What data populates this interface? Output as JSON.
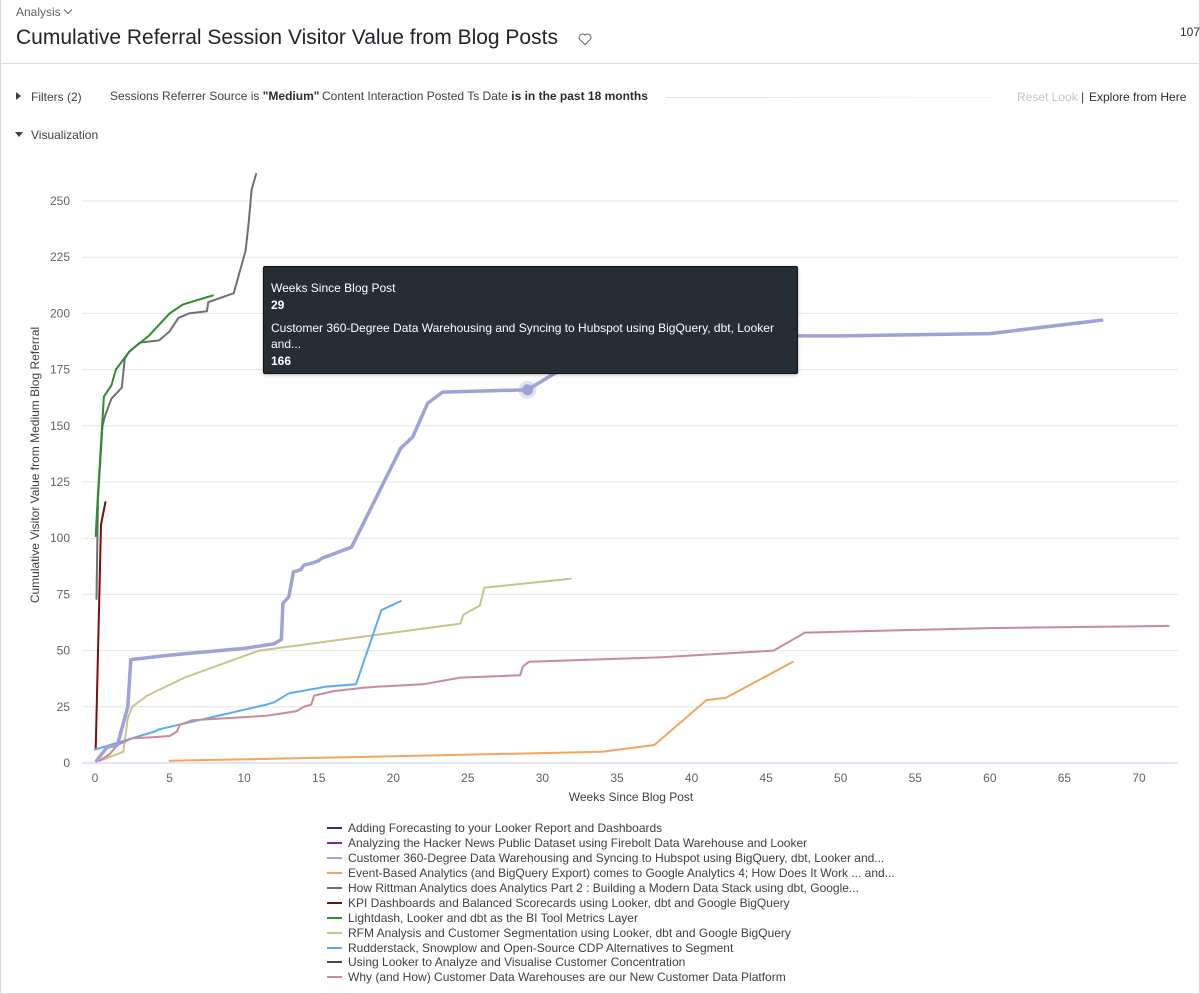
{
  "header": {
    "breadcrumb": "Analysis",
    "title": "Cumulative Referral Session Visitor Value from Blog Posts",
    "favorite_icon": "heart-outline-icon",
    "row_count": "107"
  },
  "filters": {
    "label": "Filters (2)",
    "items": [
      {
        "field": "Sessions Referrer Source",
        "op": "is",
        "value": "\"Medium\""
      },
      {
        "field": "Content Interaction Posted Ts Date",
        "op": "is in the past 18 months",
        "value": ""
      }
    ],
    "filter1_prefix": "Sessions Referrer Source is ",
    "filter1_value": "\"Medium\"",
    "filter2_prefix": "Content Interaction Posted Ts Date ",
    "filter2_value": "is in the past 18 months"
  },
  "actions": {
    "reset_label": "Reset Look",
    "separator": "|",
    "explore_label": "Explore from Here"
  },
  "visualization": {
    "label": "Visualization"
  },
  "tooltip": {
    "x_label": "Weeks Since Blog Post",
    "x_value": "29",
    "series_label": "Customer 360-Degree Data Warehousing and Syncing to Hubspot using BigQuery, dbt, Looker and...",
    "series_value": "166"
  },
  "chart_data": {
    "type": "line",
    "title": "Cumulative Referral Session Visitor Value from Blog Posts",
    "xlabel": "Weeks Since Blog Post",
    "ylabel": "Cumulative Visitor Value from Medium Blog Referral",
    "xlim": [
      0,
      72
    ],
    "ylim": [
      0,
      262
    ],
    "x_ticks": [
      0,
      5,
      10,
      15,
      20,
      25,
      30,
      35,
      40,
      45,
      50,
      55,
      60,
      65,
      70
    ],
    "y_ticks": [
      0,
      25,
      50,
      75,
      100,
      125,
      150,
      175,
      200,
      225,
      250
    ],
    "grid": true,
    "legend_position": "bottom",
    "highlight": {
      "series": "Customer 360-Degree Data Warehousing and Syncing to Hubspot using BigQuery, dbt, Looker and...",
      "x": 29,
      "y": 166
    },
    "series": [
      {
        "name": "Adding Forecasting to your Looker Report and Dashboards",
        "color": "#2d2a7e",
        "width": 2,
        "points": []
      },
      {
        "name": "Analyzing the Hacker News Public Dataset using Firebolt Data Warehouse and Looker",
        "color": "#7b2d8e",
        "width": 2,
        "points": []
      },
      {
        "name": "Customer 360-Degree Data Warehousing and Syncing to Hubspot using BigQuery, dbt, Looker and...",
        "color": "#9fa2d4",
        "width": 3.5,
        "points": [
          [
            0.1,
            1
          ],
          [
            0.8,
            7
          ],
          [
            1.5,
            8
          ],
          [
            2.2,
            25
          ],
          [
            2.4,
            46
          ],
          [
            5,
            48
          ],
          [
            10,
            51
          ],
          [
            12,
            53
          ],
          [
            12.5,
            55
          ],
          [
            12.6,
            71
          ],
          [
            13,
            74
          ],
          [
            13.3,
            85
          ],
          [
            13.8,
            86
          ],
          [
            14,
            88
          ],
          [
            14.6,
            89
          ],
          [
            15,
            90
          ],
          [
            15.2,
            91
          ],
          [
            17.2,
            96
          ],
          [
            20.5,
            140
          ],
          [
            21.3,
            145
          ],
          [
            22.3,
            160
          ],
          [
            23.3,
            165
          ],
          [
            29,
            166
          ],
          [
            31,
            174
          ],
          [
            33,
            187
          ],
          [
            36,
            190
          ],
          [
            45,
            190
          ],
          [
            50,
            190
          ],
          [
            60,
            191
          ],
          [
            67.5,
            197
          ]
        ]
      },
      {
        "name": "Event-Based Analytics (and BigQuery Export) comes to Google Analytics 4; How Does It Work ... and...",
        "color": "#f2a55c",
        "width": 2,
        "points": [
          [
            5,
            1
          ],
          [
            20,
            3
          ],
          [
            34,
            5
          ],
          [
            37.5,
            8
          ],
          [
            41,
            28
          ],
          [
            42.3,
            29
          ],
          [
            46.8,
            45
          ]
        ]
      },
      {
        "name": "How Rittman Analytics does Analytics Part 2 : Building a Modern Data Stack using dbt, Google...",
        "color": "#6e6e73",
        "width": 2,
        "points": [
          [
            0.1,
            73
          ],
          [
            0.2,
            118
          ],
          [
            0.5,
            150
          ],
          [
            0.7,
            155
          ],
          [
            1.1,
            162
          ],
          [
            1.8,
            167
          ],
          [
            2,
            180
          ],
          [
            2.3,
            183
          ],
          [
            3,
            187
          ],
          [
            4.3,
            188
          ],
          [
            5,
            192
          ],
          [
            5.3,
            195
          ],
          [
            5.6,
            198
          ],
          [
            6.3,
            200
          ],
          [
            7.5,
            201
          ],
          [
            7.6,
            205
          ],
          [
            9.3,
            209
          ],
          [
            9.6,
            216
          ],
          [
            10.1,
            228
          ],
          [
            10.3,
            240
          ],
          [
            10.5,
            255
          ],
          [
            10.8,
            262
          ]
        ]
      },
      {
        "name": "KPI Dashboards and Balanced Scorecards using Looker, dbt and Google BigQuery",
        "color": "#7a0d0d",
        "width": 2,
        "points": [
          [
            0.05,
            6
          ],
          [
            0.4,
            106
          ],
          [
            0.7,
            116
          ]
        ]
      },
      {
        "name": "Lightdash, Looker and dbt as the BI Tool Metrics Layer",
        "color": "#2e8b2e",
        "width": 2,
        "points": [
          [
            0.05,
            101
          ],
          [
            0.2,
            120
          ],
          [
            0.6,
            163
          ],
          [
            1.1,
            168
          ],
          [
            1.4,
            175
          ],
          [
            2.3,
            183
          ],
          [
            3.6,
            190
          ],
          [
            5,
            200
          ],
          [
            5.9,
            204
          ],
          [
            7.9,
            208
          ]
        ]
      },
      {
        "name": "RFM Analysis and Customer Segmentation using Looker, dbt and Google BigQuery",
        "color": "#c8c38c",
        "width": 2,
        "points": [
          [
            0.3,
            1
          ],
          [
            1.9,
            5
          ],
          [
            2.2,
            20
          ],
          [
            2.5,
            25
          ],
          [
            3.5,
            30
          ],
          [
            6,
            38
          ],
          [
            11,
            50
          ],
          [
            20,
            58
          ],
          [
            24.5,
            62
          ],
          [
            24.7,
            66
          ],
          [
            25.8,
            70
          ],
          [
            26.1,
            78
          ],
          [
            31.9,
            82
          ]
        ]
      },
      {
        "name": "Rudderstack, Snowplow and Open-Source CDP Alternatives to Segment",
        "color": "#5aabf0",
        "width": 2,
        "points": [
          [
            0,
            6
          ],
          [
            0.5,
            7
          ],
          [
            2,
            10
          ],
          [
            4,
            14
          ],
          [
            4.3,
            15
          ],
          [
            11.5,
            26
          ],
          [
            12,
            27
          ],
          [
            13,
            31
          ],
          [
            15.5,
            34
          ],
          [
            17.5,
            35
          ],
          [
            19.2,
            68
          ],
          [
            20.5,
            72
          ]
        ]
      },
      {
        "name": "Using Looker to Analyze and Visualise Customer Concentration",
        "color": "#4a4a4a",
        "width": 2,
        "points": []
      },
      {
        "name": "Why (and How) Customer Data Warehouses are our New Customer Data Platform",
        "color": "#c98a98",
        "width": 2,
        "points": [
          [
            0.3,
            1
          ],
          [
            1,
            4
          ],
          [
            1.5,
            8
          ],
          [
            2.5,
            11
          ],
          [
            4,
            11.5
          ],
          [
            5,
            12
          ],
          [
            5.5,
            14
          ],
          [
            5.7,
            17
          ],
          [
            6.5,
            19
          ],
          [
            11.5,
            21
          ],
          [
            13.5,
            23
          ],
          [
            14,
            25
          ],
          [
            14.5,
            26
          ],
          [
            14.7,
            30
          ],
          [
            16,
            32
          ],
          [
            18,
            33.5
          ],
          [
            19,
            34
          ],
          [
            22,
            35
          ],
          [
            24.5,
            38
          ],
          [
            28.5,
            39
          ],
          [
            28.7,
            43
          ],
          [
            29.1,
            45
          ],
          [
            38,
            47
          ],
          [
            45.5,
            50
          ],
          [
            47.6,
            58
          ],
          [
            60,
            60
          ],
          [
            72,
            61
          ]
        ]
      }
    ]
  },
  "legend": {
    "items": [
      {
        "label": "Adding Forecasting to your Looker Report and Dashboards",
        "color": "#2d2a7e"
      },
      {
        "label": "Analyzing the Hacker News Public Dataset using Firebolt Data Warehouse and Looker",
        "color": "#7b2d8e"
      },
      {
        "label": "Customer 360-Degree Data Warehousing and Syncing to Hubspot using BigQuery, dbt, Looker and...",
        "color": "#9fa2d4"
      },
      {
        "label": "Event-Based Analytics (and BigQuery Export) comes to Google Analytics 4; How Does It Work ... and...",
        "color": "#f2a55c"
      },
      {
        "label": "How Rittman Analytics does Analytics Part 2 : Building a Modern Data Stack using dbt, Google...",
        "color": "#6e6e73"
      },
      {
        "label": "KPI Dashboards and Balanced Scorecards using Looker, dbt and Google BigQuery",
        "color": "#7a0d0d"
      },
      {
        "label": "Lightdash, Looker and dbt as the BI Tool Metrics Layer",
        "color": "#2e8b2e"
      },
      {
        "label": "RFM Analysis and Customer Segmentation using Looker, dbt and Google BigQuery",
        "color": "#c8c38c"
      },
      {
        "label": "Rudderstack, Snowplow and Open-Source CDP Alternatives to Segment",
        "color": "#5aabf0"
      },
      {
        "label": "Using Looker to Analyze and Visualise Customer Concentration",
        "color": "#4a4a4a"
      },
      {
        "label": "Why (and How) Customer Data Warehouses are our New Customer Data Platform",
        "color": "#c98a98"
      }
    ]
  }
}
